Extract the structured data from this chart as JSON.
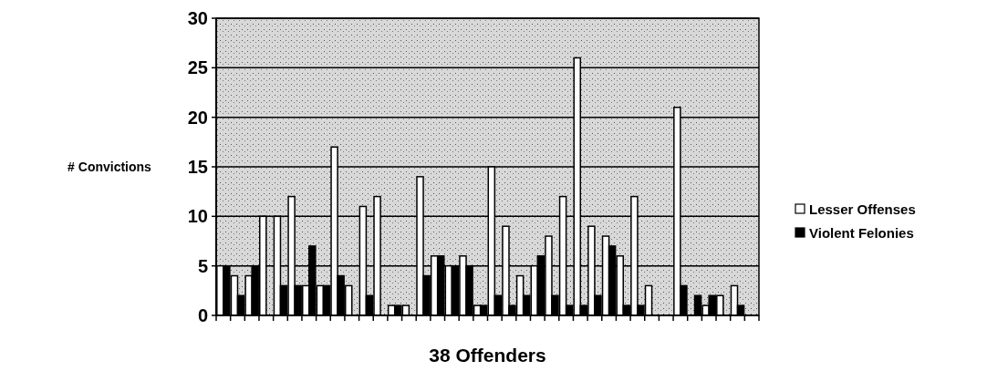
{
  "chart_data": {
    "type": "bar",
    "xlabel": "38 Offenders",
    "ylabel": "# Convictions",
    "categories": [
      null,
      null,
      null,
      null,
      null,
      null,
      null,
      null,
      null,
      null,
      null,
      null,
      null,
      null,
      null,
      null,
      null,
      null,
      null,
      null,
      null,
      null,
      null,
      null,
      null,
      null,
      null,
      null,
      null,
      null,
      null,
      null,
      null,
      null,
      null,
      null,
      null,
      null
    ],
    "series": [
      {
        "name": "Lesser Offenses",
        "color": "#ffffff",
        "values": [
          5,
          4,
          4,
          10,
          10,
          12,
          3,
          3,
          17,
          3,
          11,
          12,
          1,
          1,
          14,
          6,
          5,
          6,
          1,
          15,
          9,
          4,
          5,
          8,
          12,
          26,
          9,
          8,
          6,
          12,
          3,
          0,
          21,
          0,
          1,
          2,
          3,
          0
        ]
      },
      {
        "name": "Violent Felonies",
        "color": "#000000",
        "values": [
          5,
          2,
          5,
          0,
          3,
          3,
          7,
          3,
          4,
          0,
          2,
          0,
          1,
          0,
          4,
          6,
          5,
          5,
          1,
          2,
          1,
          2,
          6,
          2,
          1,
          1,
          2,
          7,
          1,
          1,
          0,
          0,
          3,
          2,
          2,
          0,
          1,
          0
        ]
      }
    ],
    "ylim": [
      0,
      30
    ],
    "yticks": [
      0,
      5,
      10,
      15,
      20,
      25,
      30
    ],
    "grid": "y",
    "legend": "right"
  }
}
